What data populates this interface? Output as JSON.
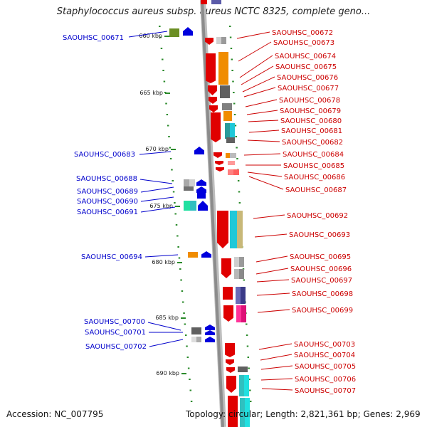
{
  "title": "Staphylococcus aureus subsp. aureus NCTC 8325, complete geno...",
  "footer": {
    "accession": "Accession: NC_007795",
    "summary": "Topology: circular; Length: 2,821,361 bp; Genes: 2,969"
  },
  "kbp_labels": [
    "660 kbp",
    "665 kbp",
    "670 kbp",
    "675 kbp",
    "680 kbp",
    "685 kbp",
    "690 kbp"
  ],
  "colors": {
    "left_label": "#0000cc",
    "right_label": "#cc0000",
    "ruler_tick": "#2a8a2a",
    "backbone": "#8c8c8c"
  },
  "left_genes": [
    "SAOUHSC_00671",
    "SAOUHSC_00683",
    "SAOUHSC_00688",
    "SAOUHSC_00689",
    "SAOUHSC_00690",
    "SAOUHSC_00691",
    "SAOUHSC_00694",
    "SAOUHSC_00700",
    "SAOUHSC_00701",
    "SAOUHSC_00702"
  ],
  "right_genes": [
    "SAOUHSC_00672",
    "SAOUHSC_00673",
    "SAOUHSC_00674",
    "SAOUHSC_00675",
    "SAOUHSC_00676",
    "SAOUHSC_00677",
    "SAOUHSC_00678",
    "SAOUHSC_00679",
    "SAOUHSC_00680",
    "SAOUHSC_00681",
    "SAOUHSC_00682",
    "SAOUHSC_00684",
    "SAOUHSC_00685",
    "SAOUHSC_00686",
    "SAOUHSC_00687",
    "SAOUHSC_00692",
    "SAOUHSC_00693",
    "SAOUHSC_00695",
    "SAOUHSC_00696",
    "SAOUHSC_00697",
    "SAOUHSC_00698",
    "SAOUHSC_00699",
    "SAOUHSC_00703",
    "SAOUHSC_00704",
    "SAOUHSC_00705",
    "SAOUHSC_00706",
    "SAOUHSC_00707"
  ]
}
